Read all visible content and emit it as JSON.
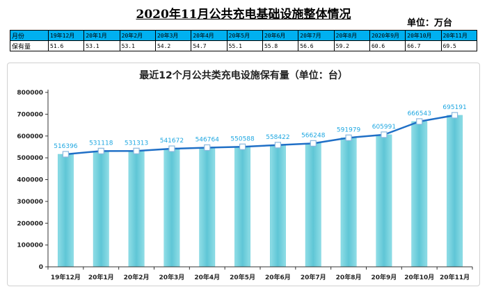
{
  "title": "2020年11月公共充电基础设施整体情况",
  "unit_label": "单位：万台",
  "summary_table": {
    "header_label": "月份",
    "row_label": "保有量",
    "months": [
      "19年12月",
      "20年1月",
      "20年2月",
      "20年3月",
      "20年4月",
      "20年5月",
      "20年6月",
      "20年7月",
      "20年8月",
      "2020年9月",
      "20年10月",
      "20年11月"
    ],
    "values": [
      "51.6",
      "53.1",
      "53.1",
      "54.2",
      "54.7",
      "55.1",
      "55.8",
      "56.6",
      "59.2",
      "60.6",
      "66.7",
      "69.5"
    ]
  },
  "colors": {
    "header_bg": "#00b0f0",
    "bar_fill": "#6fcfdc",
    "line": "#1f6fc6",
    "label": "#1ea7e1"
  },
  "chart_data": {
    "type": "bar",
    "title": "最近12个月公共类充电设施保有量（单位：台）",
    "categories": [
      "19年12月",
      "20年1月",
      "20年2月",
      "20年3月",
      "20年4月",
      "20年5月",
      "20年6月",
      "20年7月",
      "20年8月",
      "20年9月",
      "20年10月",
      "20年11月"
    ],
    "values": [
      516396,
      531118,
      531313,
      541672,
      546764,
      550588,
      558422,
      566248,
      591979,
      605991,
      666543,
      695191
    ],
    "data_labels": [
      "516396",
      "531118",
      "531313",
      "541672",
      "546764",
      "550588",
      "558422",
      "566248",
      "591979",
      "605991",
      "666543",
      "695191"
    ],
    "overlay_line": true,
    "ylim": [
      0,
      800000
    ],
    "yticks": [
      0,
      100000,
      200000,
      300000,
      400000,
      500000,
      600000,
      700000,
      800000
    ],
    "ytick_labels": [
      "0",
      "100000",
      "200000",
      "300000",
      "400000",
      "500000",
      "600000",
      "700000",
      "800000"
    ],
    "grid": false,
    "legend": "none"
  }
}
